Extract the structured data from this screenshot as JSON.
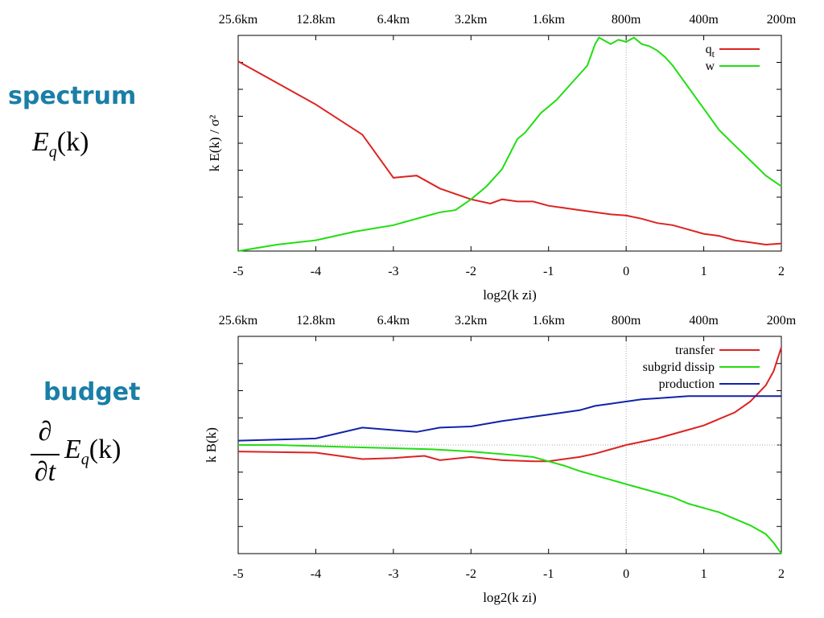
{
  "left_panel": {
    "spectrum_title": "spectrum",
    "spectrum_formula": {
      "symbol": "E",
      "subscript": "q",
      "argument": "(k)"
    },
    "budget_title": "budget",
    "budget_formula": {
      "numerator": "∂",
      "denominator": "∂t",
      "symbol": "E",
      "subscript": "q",
      "argument": "(k)"
    }
  },
  "colors": {
    "red": "#dd2222",
    "green": "#22dd11",
    "blue": "#1122aa",
    "axis": "#000000",
    "zero_line": "#aaaaaa"
  },
  "chart_data": [
    {
      "type": "line",
      "title": "",
      "xlabel": "log2(k zi)",
      "ylabel": "k E(k) / σ²",
      "xlim": [
        -5,
        2
      ],
      "ylim": [
        0,
        1
      ],
      "y_units": "relative (no numeric ticks printed)",
      "x_ticks": [
        "-5",
        "-4",
        "-3",
        "-2",
        "-1",
        "0",
        "1",
        "2"
      ],
      "top_ticks": [
        "25.6km",
        "12.8km",
        "6.4km",
        "3.2km",
        "1.6km",
        "800m",
        "400m",
        "200m"
      ],
      "vertical_line_at": 0,
      "legend": {
        "position": "top-right",
        "entries": [
          {
            "label": "q",
            "sub": "t",
            "color": "#dd2222"
          },
          {
            "label": "w",
            "sub": "",
            "color": "#22dd11"
          }
        ]
      },
      "series": [
        {
          "name": "qt",
          "x": [
            -5,
            -4.5,
            -4,
            -3.4,
            -3,
            -2.7,
            -2.4,
            -2.0,
            -1.75,
            -1.6,
            -1.4,
            -1.2,
            -1.0,
            -0.8,
            -0.6,
            -0.4,
            -0.2,
            0,
            0.2,
            0.4,
            0.6,
            0.8,
            1.0,
            1.2,
            1.4,
            1.6,
            1.8,
            2.0
          ],
          "y": [
            0.88,
            0.78,
            0.68,
            0.54,
            0.34,
            0.35,
            0.29,
            0.24,
            0.22,
            0.24,
            0.23,
            0.23,
            0.21,
            0.2,
            0.19,
            0.18,
            0.17,
            0.165,
            0.15,
            0.13,
            0.12,
            0.1,
            0.08,
            0.07,
            0.05,
            0.04,
            0.03,
            0.035
          ]
        },
        {
          "name": "w",
          "x": [
            -5,
            -4.5,
            -4,
            -3.5,
            -3,
            -2.6,
            -2.4,
            -2.2,
            -2.0,
            -1.8,
            -1.6,
            -1.4,
            -1.3,
            -1.1,
            -0.9,
            -0.7,
            -0.5,
            -0.4,
            -0.35,
            -0.2,
            -0.1,
            0,
            0.1,
            0.2,
            0.3,
            0.4,
            0.5,
            0.6,
            0.8,
            1.0,
            1.2,
            1.4,
            1.6,
            1.8,
            2.0
          ],
          "y": [
            0.0,
            0.03,
            0.05,
            0.09,
            0.12,
            0.16,
            0.18,
            0.19,
            0.24,
            0.3,
            0.38,
            0.52,
            0.55,
            0.64,
            0.7,
            0.78,
            0.86,
            0.96,
            0.99,
            0.96,
            0.98,
            0.97,
            0.99,
            0.96,
            0.95,
            0.93,
            0.9,
            0.86,
            0.76,
            0.66,
            0.56,
            0.49,
            0.42,
            0.35,
            0.3
          ]
        }
      ]
    },
    {
      "type": "line",
      "title": "",
      "xlabel": "log2(k zi)",
      "ylabel": "k B(k)",
      "xlim": [
        -5,
        2
      ],
      "ylim": [
        -1,
        1
      ],
      "y_units": "relative (no numeric ticks printed)",
      "x_ticks": [
        "-5",
        "-4",
        "-3",
        "-2",
        "-1",
        "0",
        "1",
        "2"
      ],
      "top_ticks": [
        "25.6km",
        "12.8km",
        "6.4km",
        "3.2km",
        "1.6km",
        "800m",
        "400m",
        "200m"
      ],
      "horizontal_line_at": 0,
      "vertical_line_at": 0,
      "legend": {
        "position": "top-right",
        "entries": [
          {
            "label": "transfer",
            "color": "#dd2222"
          },
          {
            "label": "subgrid dissip",
            "color": "#22dd11"
          },
          {
            "label": "production",
            "color": "#1122aa"
          }
        ]
      },
      "series": [
        {
          "name": "transfer",
          "x": [
            -5,
            -4,
            -3.4,
            -3,
            -2.6,
            -2.4,
            -2.0,
            -1.6,
            -1.2,
            -1.0,
            -0.8,
            -0.6,
            -0.4,
            -0.2,
            0,
            0.2,
            0.4,
            0.6,
            0.8,
            1.0,
            1.2,
            1.4,
            1.6,
            1.8,
            1.9,
            2.0
          ],
          "y": [
            -0.06,
            -0.07,
            -0.13,
            -0.12,
            -0.1,
            -0.14,
            -0.11,
            -0.14,
            -0.15,
            -0.15,
            -0.13,
            -0.11,
            -0.08,
            -0.04,
            0.0,
            0.03,
            0.06,
            0.1,
            0.14,
            0.18,
            0.24,
            0.3,
            0.4,
            0.55,
            0.68,
            0.9
          ]
        },
        {
          "name": "subgrid dissip",
          "x": [
            -5,
            -4.5,
            -4,
            -3.5,
            -3,
            -2.5,
            -2.0,
            -1.5,
            -1.2,
            -1.0,
            -0.8,
            -0.6,
            -0.4,
            -0.2,
            0,
            0.2,
            0.4,
            0.6,
            0.8,
            1.0,
            1.2,
            1.4,
            1.6,
            1.8,
            1.9,
            2.0
          ],
          "y": [
            0.0,
            0.0,
            -0.01,
            -0.02,
            -0.03,
            -0.04,
            -0.06,
            -0.09,
            -0.11,
            -0.15,
            -0.19,
            -0.24,
            -0.28,
            -0.32,
            -0.36,
            -0.4,
            -0.44,
            -0.48,
            -0.54,
            -0.58,
            -0.62,
            -0.68,
            -0.74,
            -0.82,
            -0.9,
            -1.0
          ]
        },
        {
          "name": "production",
          "x": [
            -5,
            -4,
            -3.4,
            -2.7,
            -2.4,
            -2.0,
            -1.6,
            -1.2,
            -1.0,
            -0.8,
            -0.6,
            -0.4,
            -0.2,
            0,
            0.2,
            0.4,
            0.6,
            0.8,
            1.0,
            1.2,
            1.4,
            1.6,
            1.8,
            2.0
          ],
          "y": [
            0.04,
            0.06,
            0.16,
            0.12,
            0.16,
            0.17,
            0.22,
            0.26,
            0.28,
            0.3,
            0.32,
            0.36,
            0.38,
            0.4,
            0.42,
            0.43,
            0.44,
            0.45,
            0.45,
            0.45,
            0.45,
            0.45,
            0.45,
            0.45
          ]
        }
      ]
    }
  ]
}
